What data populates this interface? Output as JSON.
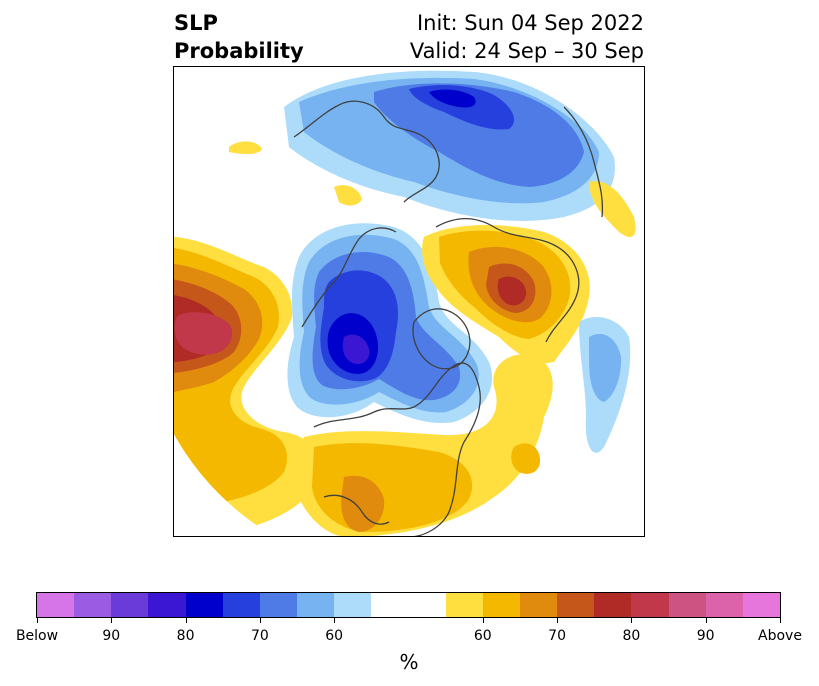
{
  "title": {
    "left_line1": "SLP",
    "left_line2": "Probability",
    "right_line1": "Init: Sun 04 Sep 2022",
    "right_line2": "Valid: 24 Sep – 30 Sep"
  },
  "colorbar": {
    "unit": "%",
    "colors": [
      "#d675e8",
      "#9b5be3",
      "#6b3bd9",
      "#3c17d3",
      "#0000cc",
      "#2640dd",
      "#4f7be6",
      "#77b3f1",
      "#acdcfa",
      "#ffffff",
      "#ffdf40",
      "#f4b800",
      "#e08a0e",
      "#c45719",
      "#b02b25",
      "#c0384a",
      "#cd5383",
      "#dc63a9",
      "#e675dc"
    ],
    "tick_labels": [
      "Below",
      "90",
      "80",
      "70",
      "60",
      "60",
      "70",
      "80",
      "90",
      "Above"
    ]
  },
  "map": {
    "projection": "north-polar-stereographic",
    "colors": {
      "below_60": "#acdcfa",
      "below_65": "#77b3f1",
      "below_70": "#4f7be6",
      "below_75": "#2640dd",
      "below_80": "#0000cc",
      "below_85": "#3c17d3",
      "above_55": "#ffdf40",
      "above_60": "#f4b800",
      "above_65": "#e08a0e",
      "above_70": "#c45719",
      "above_75": "#b02b25",
      "above_80": "#c0384a",
      "above_85": "#cd5383",
      "coast": "#404040"
    }
  }
}
